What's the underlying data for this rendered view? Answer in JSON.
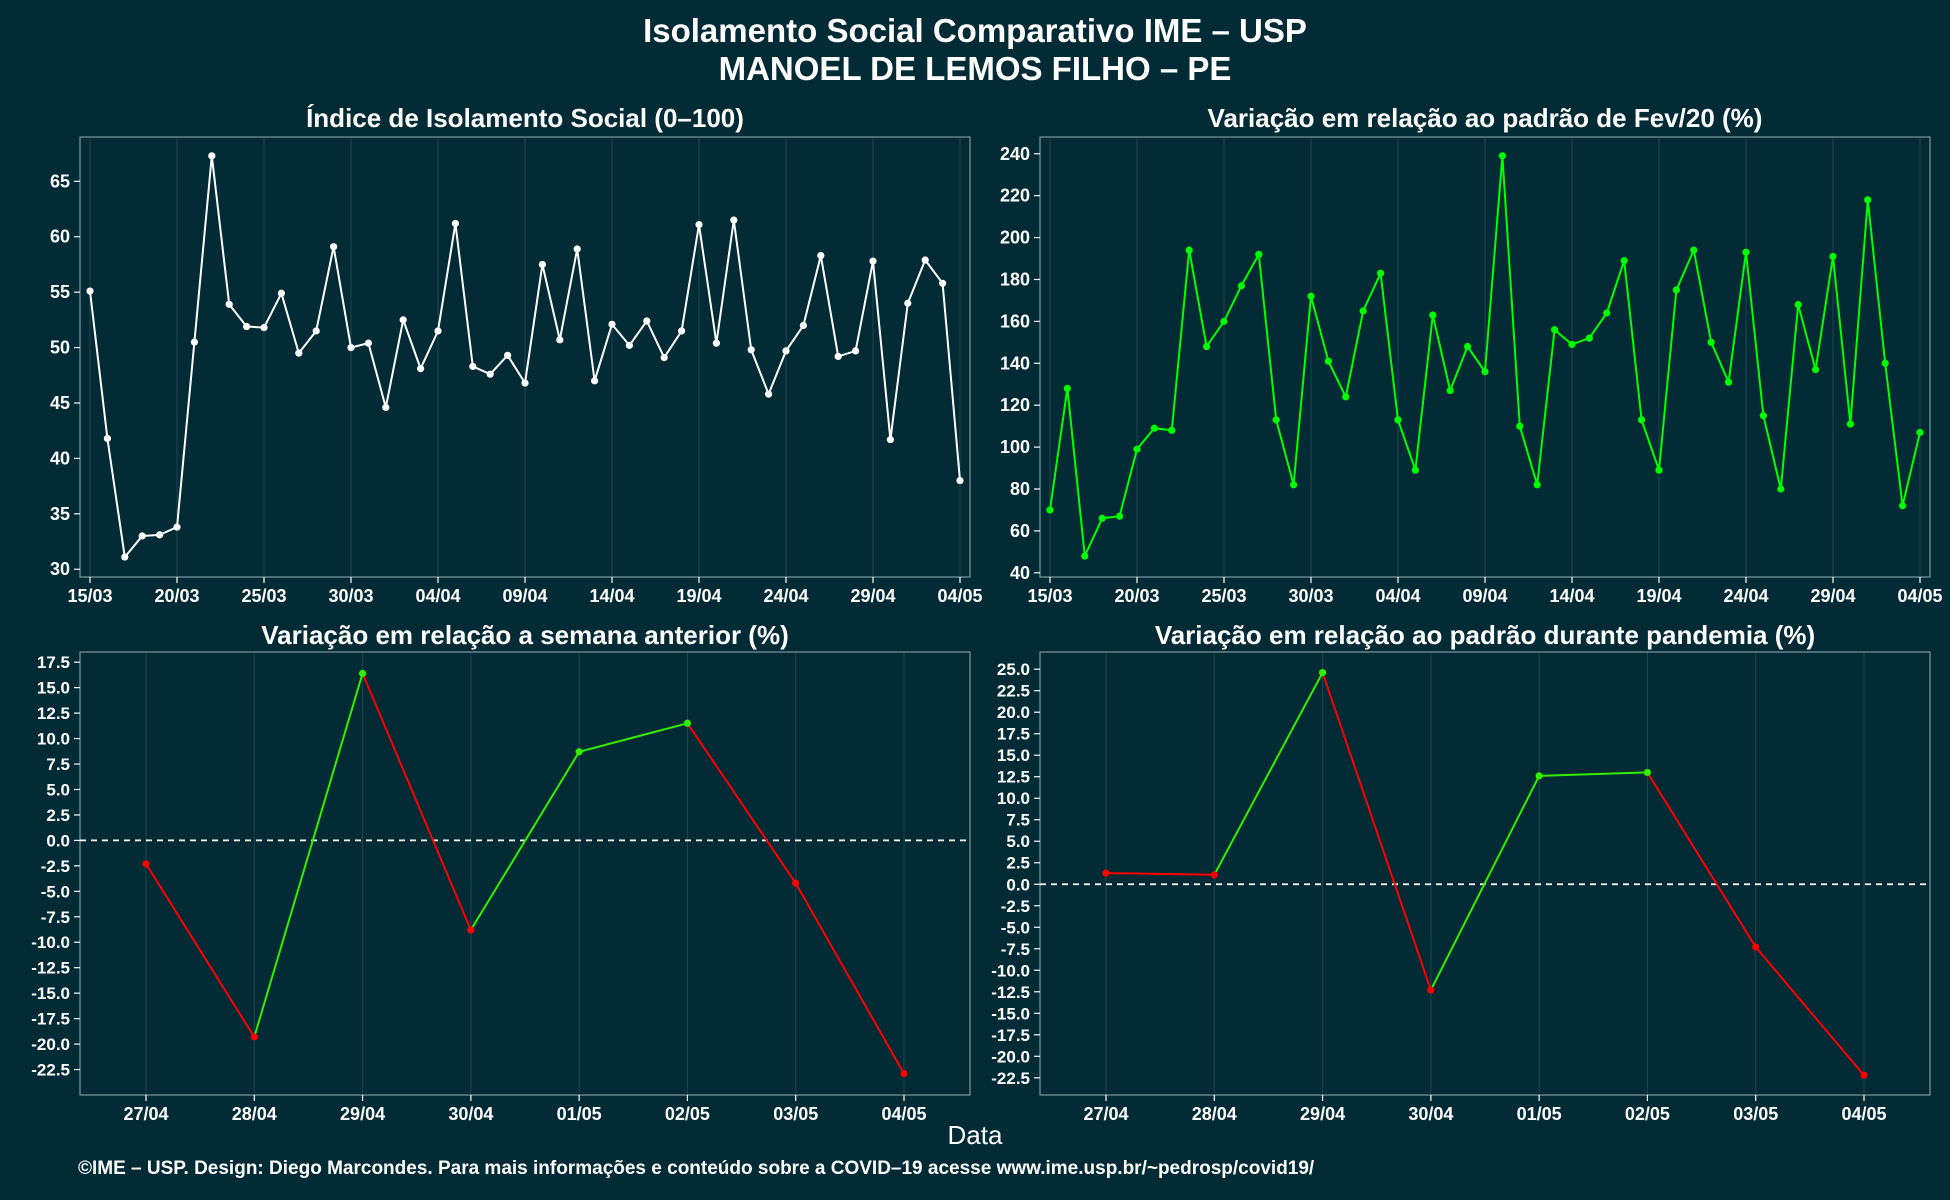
{
  "title": "Isolamento Social Comparativo IME – USP",
  "subtitle": "MANOEL DE LEMOS FILHO – PE",
  "xlabel": "Data",
  "footer": "©IME – USP. Design: Diego Marcondes. Para mais informações e conteúdo sobre a COVID–19 acesse www.ime.usp.br/~pedrosp/covid19/",
  "colors": {
    "background": "#022b36",
    "grid": "#1e4550",
    "white_line": "#ffffff",
    "green_line": "#00ff00",
    "up": "#33ee00",
    "down": "#ff0000"
  },
  "chart_data": [
    {
      "type": "line",
      "title": "Índice de Isolamento Social (0–100)",
      "color": "#ffffff",
      "x": [
        "15/03",
        "16/03",
        "17/03",
        "18/03",
        "19/03",
        "20/03",
        "21/03",
        "22/03",
        "23/03",
        "24/03",
        "25/03",
        "26/03",
        "27/03",
        "28/03",
        "29/03",
        "30/03",
        "31/03",
        "01/04",
        "02/04",
        "03/04",
        "04/04",
        "05/04",
        "06/04",
        "07/04",
        "08/04",
        "09/04",
        "10/04",
        "11/04",
        "12/04",
        "13/04",
        "14/04",
        "15/04",
        "16/04",
        "17/04",
        "18/04",
        "19/04",
        "20/04",
        "21/04",
        "22/04",
        "23/04",
        "24/04",
        "25/04",
        "26/04",
        "27/04",
        "28/04",
        "29/04",
        "30/04",
        "01/05",
        "02/05",
        "03/05",
        "04/05"
      ],
      "xticks": [
        "15/03",
        "20/03",
        "25/03",
        "30/03",
        "04/04",
        "09/04",
        "14/04",
        "19/04",
        "24/04",
        "29/04",
        "04/05"
      ],
      "values": [
        55.1,
        41.8,
        31.1,
        33.0,
        33.1,
        33.8,
        50.5,
        67.3,
        53.9,
        51.9,
        51.8,
        54.9,
        49.5,
        51.5,
        59.1,
        50.0,
        50.4,
        44.6,
        52.5,
        48.1,
        51.5,
        61.2,
        48.3,
        47.6,
        49.3,
        46.8,
        57.5,
        50.7,
        58.9,
        47.0,
        52.1,
        50.2,
        52.4,
        49.1,
        51.5,
        61.1,
        50.4,
        61.5,
        49.8,
        45.8,
        49.7,
        52.0,
        58.3,
        49.2,
        49.7,
        57.8,
        41.7,
        54.0,
        57.9,
        55.8,
        38.0
      ],
      "ylim": [
        29.3,
        69.0
      ],
      "yticks": [
        30,
        35,
        40,
        45,
        50,
        55,
        60,
        65
      ]
    },
    {
      "type": "line",
      "title": "Variação em relação ao padrão de Fev/20 (%)",
      "color": "#00ff00",
      "x": [
        "15/03",
        "16/03",
        "17/03",
        "18/03",
        "19/03",
        "20/03",
        "21/03",
        "22/03",
        "23/03",
        "24/03",
        "25/03",
        "26/03",
        "27/03",
        "28/03",
        "29/03",
        "30/03",
        "31/03",
        "01/04",
        "02/04",
        "03/04",
        "04/04",
        "05/04",
        "06/04",
        "07/04",
        "08/04",
        "09/04",
        "10/04",
        "11/04",
        "12/04",
        "13/04",
        "14/04",
        "15/04",
        "16/04",
        "17/04",
        "18/04",
        "19/04",
        "20/04",
        "21/04",
        "22/04",
        "23/04",
        "24/04",
        "25/04",
        "26/04",
        "27/04",
        "28/04",
        "29/04",
        "30/04",
        "01/05",
        "02/05",
        "03/05",
        "04/05"
      ],
      "xticks": [
        "15/03",
        "20/03",
        "25/03",
        "30/03",
        "04/04",
        "09/04",
        "14/04",
        "19/04",
        "24/04",
        "29/04",
        "04/05"
      ],
      "values": [
        70,
        128,
        48,
        66,
        67,
        99,
        109,
        108,
        194,
        148,
        160,
        177,
        192,
        113,
        82,
        172,
        141,
        124,
        165,
        183,
        113,
        89,
        163,
        127,
        148,
        136,
        239,
        110,
        82,
        156,
        149,
        152,
        164,
        189,
        113,
        89,
        175,
        194,
        150,
        131,
        193,
        115,
        80,
        168,
        137,
        191,
        111,
        218,
        140,
        72,
        107
      ],
      "ylim": [
        38,
        248
      ],
      "yticks": [
        40,
        60,
        80,
        100,
        120,
        140,
        160,
        180,
        200,
        220,
        240
      ]
    },
    {
      "type": "line",
      "title": "Variação em relação a semana anterior (%)",
      "x": [
        "27/04",
        "28/04",
        "29/04",
        "30/04",
        "01/05",
        "02/05",
        "03/05",
        "04/05"
      ],
      "values": [
        -2.3,
        -19.3,
        16.4,
        -8.8,
        8.7,
        11.5,
        -4.2,
        -22.9
      ],
      "segment_colors": {
        "increase": "#33ee00",
        "decrease": "#ff0000"
      },
      "reference_line": 0,
      "ylim": [
        -25,
        18.5
      ],
      "yticks": [
        -22.5,
        -20.0,
        -17.5,
        -15.0,
        -12.5,
        -10.0,
        -7.5,
        -5.0,
        -2.5,
        0.0,
        2.5,
        5.0,
        7.5,
        10.0,
        12.5,
        15.0,
        17.5
      ]
    },
    {
      "type": "line",
      "title": "Variação em relação ao padrão durante pandemia (%)",
      "x": [
        "27/04",
        "28/04",
        "29/04",
        "30/04",
        "01/05",
        "02/05",
        "03/05",
        "04/05"
      ],
      "values": [
        1.3,
        1.1,
        24.6,
        -12.3,
        12.6,
        13.0,
        -7.3,
        -22.2
      ],
      "segment_colors": {
        "increase": "#33ee00",
        "decrease": "#ff0000"
      },
      "reference_line": 0,
      "ylim": [
        -24.5,
        27.0
      ],
      "yticks": [
        -22.5,
        -20.0,
        -17.5,
        -15.0,
        -12.5,
        -10.0,
        -7.5,
        -5.0,
        -2.5,
        0.0,
        2.5,
        5.0,
        7.5,
        10.0,
        12.5,
        15.0,
        17.5,
        20.0,
        22.5,
        25.0
      ]
    }
  ]
}
